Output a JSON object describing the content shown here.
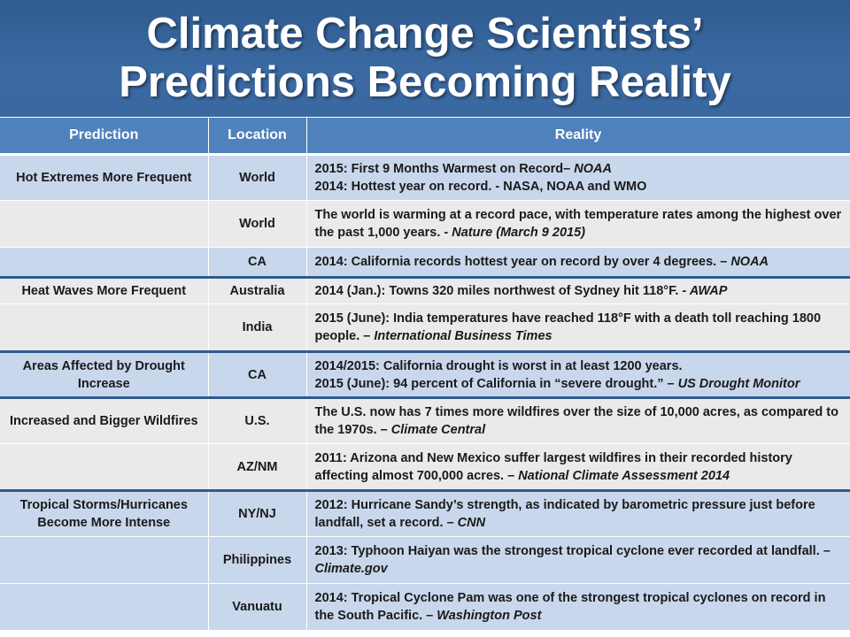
{
  "title": {
    "line1": "Climate Change Scientists’",
    "line2": "Predictions Becoming Reality"
  },
  "table": {
    "headers": [
      "Prediction",
      "Location",
      "Reality"
    ],
    "rows": [
      {
        "prediction": "Hot Extremes More Frequent",
        "location": "World",
        "reality": [
          {
            "text": "2015: First 9 Months Warmest on Record– ",
            "source": "NOAA"
          },
          {
            "text": "2014: Hottest year on record.  - NASA, NOAA and WMO",
            "source": ""
          }
        ]
      },
      {
        "prediction": "",
        "location": "World",
        "reality": [
          {
            "text": "The world is warming at a record pace, with temperature rates among the highest over the past 1,000 years.  ",
            "source": "- Nature (March 9 2015)"
          }
        ]
      },
      {
        "prediction": "",
        "location": "CA",
        "reality": [
          {
            "text": "2014: California records hottest year on record by over 4 degrees. – ",
            "source": "NOAA"
          }
        ]
      },
      {
        "prediction": "Heat Waves More Frequent",
        "location": "Australia",
        "reality": [
          {
            "text": "2014 (Jan.): Towns 320 miles northwest of Sydney hit 118°F. ",
            "source": "- AWAP"
          }
        ]
      },
      {
        "prediction": "",
        "location": "India",
        "reality": [
          {
            "text": "2015 (June): India temperatures have reached 118°F  with a death toll reaching 1800 people. – ",
            "source": "International Business Times"
          }
        ]
      },
      {
        "prediction": "Areas Affected by Drought Increase",
        "location": "CA",
        "reality": [
          {
            "text": "2014/2015: California drought is worst in at least 1200 years.",
            "source": ""
          },
          {
            "text": "2015 (June): 94 percent of California in “severe drought.” – ",
            "source": "US Drought Monitor"
          }
        ]
      },
      {
        "prediction": "Increased and Bigger Wildfires",
        "location": "U.S.",
        "reality": [
          {
            "text": "The U.S. now has 7 times more wildfires over the size of 10,000 acres, as compared to the 1970s. – ",
            "source": "Climate Central"
          }
        ]
      },
      {
        "prediction": "",
        "location": "AZ/NM",
        "reality": [
          {
            "text": "2011: Arizona and New Mexico suffer largest wildfires in their recorded history affecting almost 700,000 acres. – ",
            "source": "National Climate Assessment 2014"
          }
        ]
      },
      {
        "prediction": "Tropical Storms/Hurricanes Become More Intense",
        "location": "NY/NJ",
        "reality": [
          {
            "text": "2012: Hurricane Sandy’s strength, as indicated by barometric pressure just before landfall, set a record. – ",
            "source": "CNN"
          }
        ]
      },
      {
        "prediction": "",
        "location": "Philippines",
        "reality": [
          {
            "text": "2013: Typhoon Haiyan was the strongest tropical cyclone ever recorded at landfall. – ",
            "source": "Climate.gov"
          }
        ]
      },
      {
        "prediction": "",
        "location": "Vanuatu",
        "reality": [
          {
            "text": "2014: Tropical Cyclone Pam was one of the strongest tropical cyclones on record in the South Pacific. – ",
            "source": "Washington Post"
          }
        ]
      }
    ]
  }
}
